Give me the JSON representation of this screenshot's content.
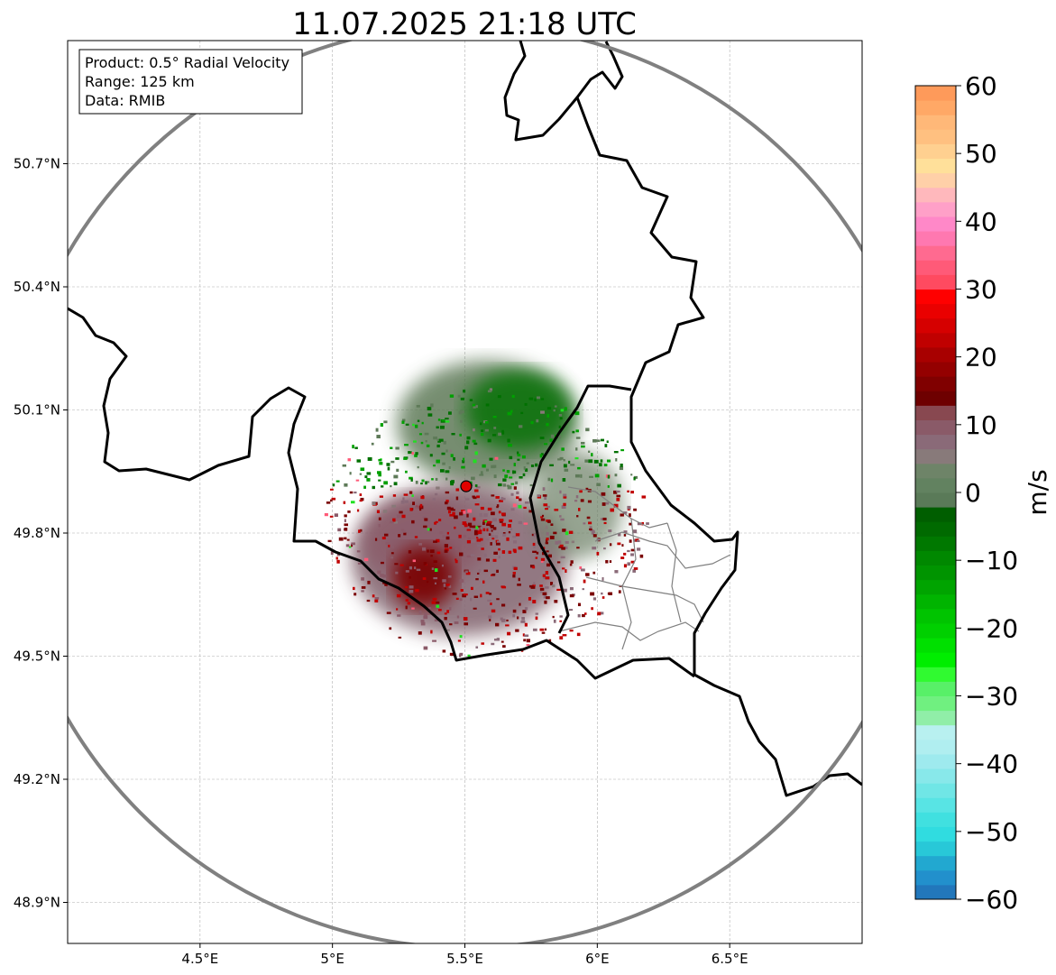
{
  "chart_data": {
    "type": "heatmap",
    "title": "11.07.2025 21:18 UTC",
    "xlim": [
      4.0,
      7.0
    ],
    "ylim": [
      48.8,
      51.0
    ],
    "x_ticks": [
      {
        "v": 4.5,
        "label": "4.5°E"
      },
      {
        "v": 5.0,
        "label": "5°E"
      },
      {
        "v": 5.5,
        "label": "5.5°E"
      },
      {
        "v": 6.0,
        "label": "6°E"
      },
      {
        "v": 6.5,
        "label": "6.5°E"
      }
    ],
    "y_ticks": [
      {
        "v": 48.9,
        "label": "48.9°N"
      },
      {
        "v": 49.2,
        "label": "49.2°N"
      },
      {
        "v": 49.5,
        "label": "49.5°N"
      },
      {
        "v": 49.8,
        "label": "49.8°N"
      },
      {
        "v": 50.1,
        "label": "50.1°N"
      },
      {
        "v": 50.4,
        "label": "50.4°N"
      },
      {
        "v": 50.7,
        "label": "50.7°N"
      }
    ],
    "grid": true,
    "radar_site": {
      "lon": 5.505,
      "lat": 49.914
    },
    "range_km": 125,
    "info_box": [
      "Product: 0.5° Radial Velocity",
      "Range: 125 km",
      "Data: RMIB"
    ],
    "colorbar": {
      "label": "m/s",
      "range": [
        -60,
        60
      ],
      "ticks": [
        {
          "v": 60,
          "label": "60"
        },
        {
          "v": 50,
          "label": "50"
        },
        {
          "v": 40,
          "label": "40"
        },
        {
          "v": 30,
          "label": "30"
        },
        {
          "v": 20,
          "label": "20"
        },
        {
          "v": 10,
          "label": "10"
        },
        {
          "v": 0,
          "label": "0"
        },
        {
          "v": -10,
          "label": "−10"
        },
        {
          "v": -20,
          "label": "−20"
        },
        {
          "v": -30,
          "label": "−30"
        },
        {
          "v": -40,
          "label": "−40"
        },
        {
          "v": -50,
          "label": "−50"
        },
        {
          "v": -60,
          "label": "−60"
        }
      ],
      "colors_bottom_to_top": [
        "#2277bb",
        "#2290cc",
        "#22a8d0",
        "#28c8d8",
        "#30dce0",
        "#40e0e0",
        "#58e4e4",
        "#70e6e6",
        "#88e8ea",
        "#9eeaee",
        "#b0eef0",
        "#b8f0f0",
        "#90eea8",
        "#70f080",
        "#58f068",
        "#30fa30",
        "#00ee00",
        "#00e000",
        "#00d000",
        "#00c400",
        "#00b400",
        "#00a400",
        "#009400",
        "#008800",
        "#007800",
        "#006a00",
        "#005e00",
        "#5a7a58",
        "#628260",
        "#6e8468",
        "#887a7a",
        "#8a6a78",
        "#8a5a68",
        "#884850",
        "#6e0000",
        "#800000",
        "#940000",
        "#a80000",
        "#c00000",
        "#d60000",
        "#ea0000",
        "#ff0000",
        "#ff4a60",
        "#ff5a78",
        "#ff6a90",
        "#ff78b0",
        "#ff88c8",
        "#ffa0c8",
        "#ffb8bc",
        "#ffd0a8",
        "#ffe09a",
        "#ffd090",
        "#ffc080",
        "#ffb878",
        "#ffa866",
        "#fe9a5a"
      ]
    }
  }
}
